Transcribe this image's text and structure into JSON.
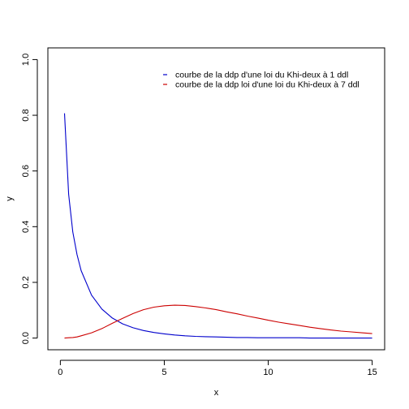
{
  "chart_data": {
    "type": "line",
    "title": "",
    "xlabel": "x",
    "ylabel": "y",
    "xlim": [
      -0.6,
      15.6
    ],
    "ylim": [
      -0.042,
      1.042
    ],
    "x_ticks": [
      0,
      5,
      10,
      15
    ],
    "x_tick_labels": [
      "0",
      "5",
      "10",
      "15"
    ],
    "y_ticks": [
      0.0,
      0.2,
      0.4,
      0.6,
      0.8,
      1.0
    ],
    "y_tick_labels": [
      "0.0",
      "0.2",
      "0.4",
      "0.6",
      "0.8",
      "1.0"
    ],
    "grid": false,
    "legend": {
      "placement": "top-right",
      "entries": [
        "courbe de la ddp d'une loi du Khi-deux à 1 ddl",
        "courbe de la ddp loi d'une loi du Khi-deux à 7 ddl"
      ]
    },
    "x": [
      0.2,
      0.4,
      0.6,
      0.8,
      1.0,
      1.5,
      2.0,
      2.5,
      3.0,
      3.5,
      4.0,
      4.5,
      5.0,
      5.5,
      6.0,
      6.5,
      7.0,
      7.5,
      8.0,
      8.5,
      9.0,
      9.5,
      10.0,
      10.5,
      11.0,
      11.5,
      12.0,
      12.5,
      13.0,
      13.5,
      14.0,
      14.5,
      15.0
    ],
    "series": [
      {
        "name": "courbe de la ddp d'une loi du Khi-deux à 1 ddl",
        "color": "#0000cc",
        "values": [
          0.807,
          0.516,
          0.381,
          0.3,
          0.242,
          0.154,
          0.104,
          0.072,
          0.051,
          0.037,
          0.027,
          0.02,
          0.015,
          0.011,
          0.008,
          0.006,
          0.005,
          0.004,
          0.003,
          0.002,
          0.002,
          0.001,
          0.001,
          0.001,
          0.001,
          0.001,
          0.0,
          0.0,
          0.0,
          0.0,
          0.0,
          0.0,
          0.0
        ]
      },
      {
        "name": "courbe de la ddp loi d'une loi du Khi-deux à 7 ddl",
        "color": "#cc0000",
        "values": [
          0.0,
          0.001,
          0.002,
          0.004,
          0.008,
          0.019,
          0.034,
          0.053,
          0.071,
          0.088,
          0.102,
          0.111,
          0.116,
          0.118,
          0.117,
          0.113,
          0.108,
          0.102,
          0.094,
          0.087,
          0.079,
          0.072,
          0.064,
          0.057,
          0.051,
          0.045,
          0.039,
          0.034,
          0.029,
          0.025,
          0.022,
          0.019,
          0.016
        ]
      }
    ]
  }
}
